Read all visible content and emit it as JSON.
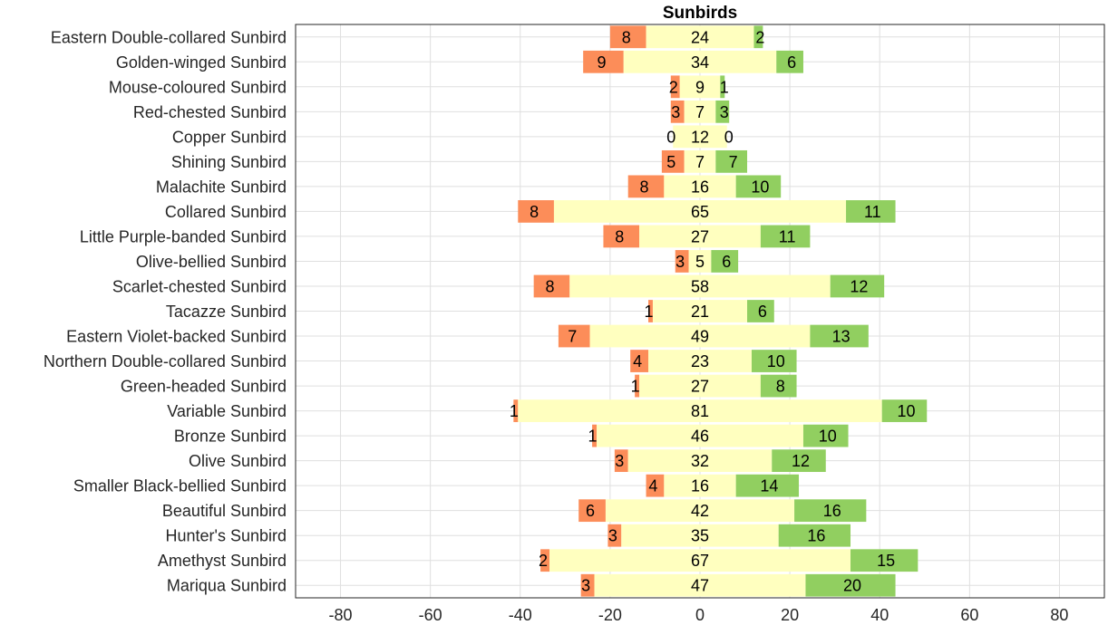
{
  "chart_data": {
    "type": "bar",
    "orientation": "horizontal",
    "stacking": "diverging",
    "title": "Sunbirds",
    "xlabel": "",
    "ylabel": "",
    "xlim": [
      -90,
      90
    ],
    "xticks": [
      -80,
      -60,
      -40,
      -20,
      0,
      20,
      40,
      60,
      80
    ],
    "grid": true,
    "legend": "none",
    "categories": [
      "Eastern Double-collared Sunbird",
      "Golden-winged Sunbird",
      "Mouse-coloured Sunbird",
      "Red-chested Sunbird",
      "Copper Sunbird",
      "Shining Sunbird",
      "Malachite Sunbird",
      "Collared Sunbird",
      "Little Purple-banded Sunbird",
      "Olive-bellied Sunbird",
      "Scarlet-chested Sunbird",
      "Tacazze Sunbird",
      "Eastern Violet-backed Sunbird",
      "Northern Double-collared Sunbird",
      "Green-headed Sunbird",
      "Variable Sunbird",
      "Bronze Sunbird",
      "Olive Sunbird",
      "Smaller Black-bellied Sunbird",
      "Beautiful Sunbird",
      "Hunter's Sunbird",
      "Amethyst Sunbird",
      "Mariqua Sunbird"
    ],
    "series": [
      {
        "color": "#fc8d59",
        "placement": "left",
        "values": [
          8,
          9,
          2,
          3,
          0,
          5,
          8,
          8,
          8,
          3,
          8,
          1,
          7,
          4,
          1,
          1,
          1,
          3,
          4,
          6,
          3,
          2,
          3
        ]
      },
      {
        "color": "#ffffbf",
        "placement": "center",
        "values": [
          24,
          34,
          9,
          7,
          12,
          7,
          16,
          65,
          27,
          5,
          58,
          21,
          49,
          23,
          27,
          81,
          46,
          32,
          16,
          42,
          35,
          67,
          47
        ]
      },
      {
        "color": "#91cf60",
        "placement": "right",
        "values": [
          2,
          6,
          1,
          3,
          0,
          7,
          10,
          11,
          11,
          6,
          12,
          6,
          13,
          10,
          8,
          10,
          10,
          12,
          14,
          16,
          16,
          15,
          20
        ]
      }
    ]
  }
}
